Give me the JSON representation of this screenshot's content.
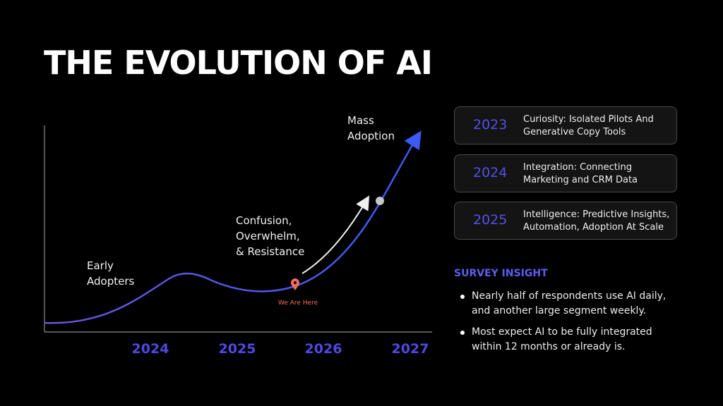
{
  "title": "THE EVOLUTION OF AI",
  "diagram": {
    "labels": {
      "early": [
        "Early",
        "Adopters"
      ],
      "confusion": [
        "Confusion,",
        "Overwhelm,",
        "& Resistance"
      ],
      "mass": [
        "Mass",
        "Adoption"
      ],
      "marker": "We Are Here"
    },
    "years": [
      "2024",
      "2025",
      "2026",
      "2027"
    ]
  },
  "timeline": [
    {
      "year": "2023",
      "text": "Curiosity: Isolated Pilots And Generative Copy Tools"
    },
    {
      "year": "2024",
      "text": "Integration: Connecting Marketing and CRM Data"
    },
    {
      "year": "2025",
      "text": "Intelligence: Predictive Insights, Automation, Adoption At Scale"
    }
  ],
  "insight": {
    "heading": "SURVEY INSIGHT",
    "bullets": [
      "Nearly half of respondents use AI daily, and another large segment weekly.",
      "Most expect AI to be fully integrated within 12 months or already is."
    ]
  }
}
